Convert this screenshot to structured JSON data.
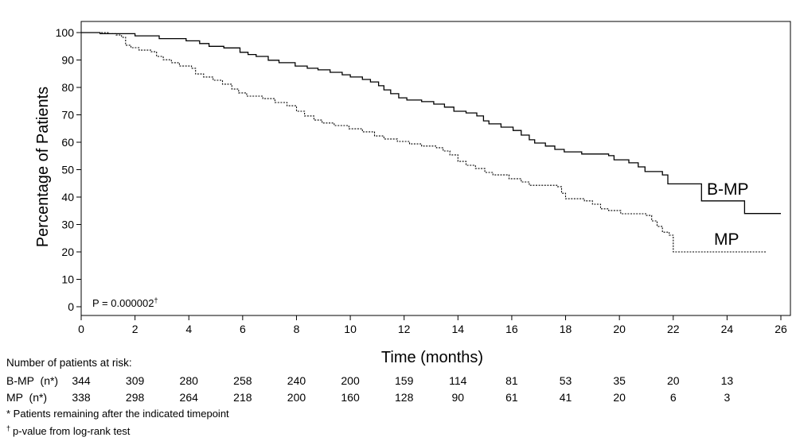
{
  "chart_data": {
    "type": "line",
    "line_shape": "step",
    "xlabel": "Time (months)",
    "ylabel": "Percentage of Patients",
    "xlim": [
      0,
      26
    ],
    "ylim": [
      0,
      100
    ],
    "xticks": [
      0,
      2,
      4,
      6,
      8,
      10,
      12,
      14,
      16,
      18,
      20,
      22,
      24,
      26
    ],
    "yticks": [
      0,
      10,
      20,
      30,
      40,
      50,
      60,
      70,
      80,
      90,
      100
    ],
    "grid": false,
    "legend_placement": "right",
    "series": [
      {
        "name": "B-MP",
        "line_style": "solid",
        "color": "#000000",
        "points": [
          [
            0,
            100
          ],
          [
            0.7,
            99.6
          ],
          [
            2.0,
            98.8
          ],
          [
            2.9,
            97.8
          ],
          [
            3.9,
            97.0
          ],
          [
            4.4,
            96.0
          ],
          [
            4.75,
            95.0
          ],
          [
            5.3,
            94.4
          ],
          [
            5.9,
            92.8
          ],
          [
            6.2,
            92.0
          ],
          [
            6.5,
            91.3
          ],
          [
            6.95,
            89.9
          ],
          [
            7.35,
            89.0
          ],
          [
            7.95,
            87.8
          ],
          [
            8.4,
            87.0
          ],
          [
            8.8,
            86.4
          ],
          [
            9.25,
            85.5
          ],
          [
            9.7,
            84.6
          ],
          [
            10.0,
            83.8
          ],
          [
            10.45,
            82.9
          ],
          [
            10.75,
            82.0
          ],
          [
            11.05,
            80.6
          ],
          [
            11.25,
            79.1
          ],
          [
            11.5,
            77.7
          ],
          [
            11.8,
            76.2
          ],
          [
            12.1,
            75.4
          ],
          [
            12.65,
            74.8
          ],
          [
            13.1,
            73.9
          ],
          [
            13.5,
            72.8
          ],
          [
            13.85,
            71.3
          ],
          [
            14.3,
            70.7
          ],
          [
            14.7,
            69.6
          ],
          [
            14.95,
            67.8
          ],
          [
            15.15,
            66.7
          ],
          [
            15.6,
            65.5
          ],
          [
            16.05,
            64.3
          ],
          [
            16.35,
            62.6
          ],
          [
            16.65,
            60.9
          ],
          [
            16.85,
            59.7
          ],
          [
            17.25,
            58.6
          ],
          [
            17.6,
            57.4
          ],
          [
            17.95,
            56.5
          ],
          [
            18.6,
            55.7
          ],
          [
            19.6,
            55.1
          ],
          [
            19.8,
            53.6
          ],
          [
            20.35,
            52.5
          ],
          [
            20.7,
            51.0
          ],
          [
            20.95,
            49.3
          ],
          [
            21.6,
            48.1
          ],
          [
            21.8,
            44.8
          ],
          [
            23.05,
            38.6
          ],
          [
            24.65,
            34.0
          ],
          [
            26.0,
            34.0
          ]
        ]
      },
      {
        "name": "MP",
        "line_style": "dashed",
        "color": "#000000",
        "points": [
          [
            0,
            100
          ],
          [
            1.0,
            99.6
          ],
          [
            1.3,
            99.1
          ],
          [
            1.5,
            98.3
          ],
          [
            1.65,
            95.4
          ],
          [
            1.85,
            94.5
          ],
          [
            2.15,
            93.6
          ],
          [
            2.6,
            93.0
          ],
          [
            2.8,
            91.3
          ],
          [
            3.05,
            90.1
          ],
          [
            3.35,
            89.0
          ],
          [
            3.65,
            87.8
          ],
          [
            4.1,
            87.0
          ],
          [
            4.25,
            84.9
          ],
          [
            4.55,
            83.8
          ],
          [
            4.9,
            82.6
          ],
          [
            5.25,
            81.2
          ],
          [
            5.6,
            79.4
          ],
          [
            5.85,
            78.0
          ],
          [
            6.15,
            76.8
          ],
          [
            6.75,
            75.9
          ],
          [
            7.2,
            74.5
          ],
          [
            7.65,
            73.3
          ],
          [
            8.0,
            71.3
          ],
          [
            8.3,
            69.6
          ],
          [
            8.65,
            68.1
          ],
          [
            8.95,
            67.0
          ],
          [
            9.4,
            66.1
          ],
          [
            9.95,
            64.9
          ],
          [
            10.45,
            63.8
          ],
          [
            10.9,
            62.3
          ],
          [
            11.25,
            61.2
          ],
          [
            11.75,
            60.3
          ],
          [
            12.2,
            59.4
          ],
          [
            12.65,
            58.6
          ],
          [
            13.2,
            58.0
          ],
          [
            13.45,
            56.8
          ],
          [
            13.7,
            55.4
          ],
          [
            14.0,
            53.0
          ],
          [
            14.3,
            51.6
          ],
          [
            14.65,
            50.4
          ],
          [
            15.0,
            49.0
          ],
          [
            15.3,
            48.1
          ],
          [
            15.9,
            46.7
          ],
          [
            16.35,
            45.5
          ],
          [
            16.65,
            44.3
          ],
          [
            17.7,
            43.8
          ],
          [
            17.85,
            41.4
          ],
          [
            18.0,
            39.4
          ],
          [
            18.7,
            38.6
          ],
          [
            19.0,
            37.4
          ],
          [
            19.3,
            35.7
          ],
          [
            19.6,
            35.1
          ],
          [
            20.05,
            33.9
          ],
          [
            21.0,
            33.3
          ],
          [
            21.2,
            31.3
          ],
          [
            21.4,
            29.3
          ],
          [
            21.6,
            27.2
          ],
          [
            21.85,
            26.1
          ],
          [
            22.0,
            20.0
          ],
          [
            25.45,
            20.0
          ]
        ]
      }
    ],
    "annotations": [
      {
        "text": "P = 0.000002",
        "mark": "†"
      }
    ]
  },
  "at_risk": {
    "title": "Number of patients at risk:",
    "times": [
      0,
      2,
      4,
      6,
      8,
      10,
      12,
      14,
      16,
      18,
      20,
      22,
      24
    ],
    "rows": [
      {
        "label": "B-MP  (n*)",
        "values": [
          344,
          309,
          280,
          258,
          240,
          200,
          159,
          114,
          81,
          53,
          35,
          20,
          13
        ]
      },
      {
        "label": "MP  (n*)",
        "values": [
          338,
          298,
          264,
          218,
          200,
          160,
          128,
          90,
          61,
          41,
          20,
          6,
          3
        ]
      }
    ]
  },
  "footnotes": [
    {
      "text": "* Patients remaining after the indicated timepoint"
    },
    {
      "mark": "†",
      "text": "p-value from log-rank test"
    }
  ]
}
